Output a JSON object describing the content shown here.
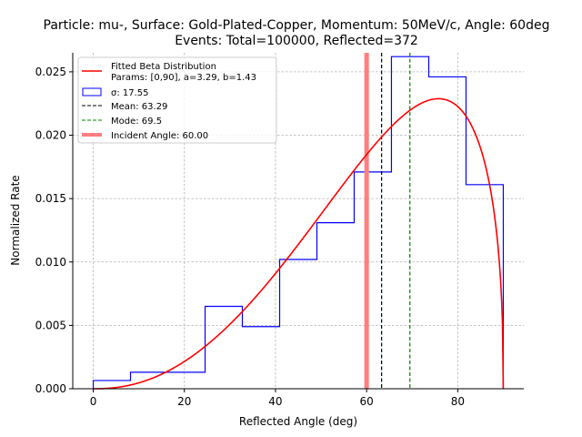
{
  "chart_data": {
    "type": "histogram",
    "title_line1": "Particle: mu-, Surface: Gold-Plated-Copper, Momentum: 50MeV/c, Angle: 60deg",
    "title_line2": "Events: Total=100000, Reflected=372",
    "xlabel": "Reflected Angle (deg)",
    "ylabel": "Normalized Rate",
    "xlim": [
      -4.5,
      94.5
    ],
    "ylim": [
      0,
      0.0265
    ],
    "xticks": [
      0,
      20,
      40,
      60,
      80
    ],
    "yticks": [
      "0.000",
      "0.005",
      "0.010",
      "0.015",
      "0.020",
      "0.025"
    ],
    "grid": true,
    "legend_position": "upper-left",
    "histogram": {
      "bin_edges": [
        0,
        8.18,
        16.36,
        24.55,
        32.73,
        40.91,
        49.09,
        57.27,
        65.45,
        73.64,
        81.82,
        90
      ],
      "values": [
        0.00065,
        0.0013,
        0.0013,
        0.0065,
        0.0049,
        0.0102,
        0.0131,
        0.0171,
        0.0262,
        0.0246,
        0.0161
      ],
      "color": "#0000ff",
      "label": "σ: 17.55"
    },
    "beta_fit": {
      "label_line1": "Fitted Beta Distribution",
      "label_line2": "Params: [0,90], a=3.29, b=1.43",
      "a": 3.29,
      "b": 1.43,
      "range": [
        0,
        90
      ],
      "color": "#ff0000"
    },
    "mean": {
      "value": 63.29,
      "label": "Mean: 63.29",
      "color": "#000000"
    },
    "mode": {
      "value": 69.5,
      "label": "Mode: 69.5",
      "color": "#008000"
    },
    "incident": {
      "value": 60.0,
      "label": "Incident Angle: 60.00",
      "color": "#ff7f7f"
    }
  }
}
